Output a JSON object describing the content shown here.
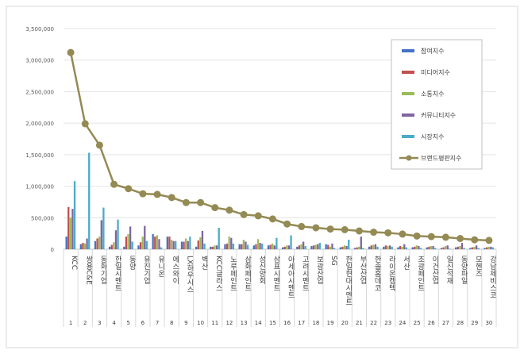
{
  "chart_data": {
    "type": "bar",
    "title": "",
    "xlabel": "",
    "ylabel": "",
    "ylim": [
      0,
      3500000
    ],
    "yticks": [
      "0",
      "500,000",
      "1,000,000",
      "1,500,000",
      "2,000,000",
      "2,500,000",
      "3,000,000",
      "3,500,000"
    ],
    "categories": [
      "KCC",
      "쌍용C&E",
      "동화기업",
      "한일시멘트",
      "동양",
      "유진기업",
      "유니온",
      "에스와이",
      "LX하우시스",
      "벽산",
      "KCC글라스",
      "노루페인트",
      "삼화페인트",
      "성신양회",
      "삼표시멘트",
      "아세아시멘트",
      "고려시멘트",
      "보광산업",
      "SG",
      "한일현대시멘트",
      "부산산업",
      "한솔홈데코",
      "라이온켐텍",
      "서산",
      "조광페인트",
      "이건산업",
      "일신석재",
      "동양파일",
      "모헨즈",
      "강남제비스코"
    ],
    "ranks": [
      "1",
      "2",
      "3",
      "4",
      "5",
      "6",
      "7",
      "8",
      "9",
      "10",
      "11",
      "12",
      "13",
      "14",
      "15",
      "16",
      "17",
      "18",
      "19",
      "20",
      "21",
      "22",
      "23",
      "24",
      "25",
      "26",
      "27",
      "28",
      "29",
      "30"
    ],
    "series": [
      {
        "name": "참여지수",
        "color": "#4472c4",
        "values": [
          200000,
          80000,
          130000,
          40000,
          40000,
          60000,
          240000,
          200000,
          120000,
          40000,
          40000,
          80000,
          80000,
          60000,
          60000,
          30000,
          40000,
          50000,
          80000,
          30000,
          20000,
          40000,
          40000,
          30000,
          30000,
          30000,
          20000,
          30000,
          20000,
          20000
        ]
      },
      {
        "name": "미디어지수",
        "color": "#c0504d",
        "values": [
          670000,
          100000,
          170000,
          70000,
          200000,
          110000,
          200000,
          200000,
          120000,
          140000,
          40000,
          90000,
          80000,
          80000,
          70000,
          40000,
          60000,
          60000,
          70000,
          40000,
          30000,
          60000,
          60000,
          50000,
          40000,
          40000,
          30000,
          40000,
          30000,
          30000
        ]
      },
      {
        "name": "소통지수",
        "color": "#9bbb59",
        "values": [
          500000,
          90000,
          200000,
          110000,
          240000,
          200000,
          220000,
          150000,
          170000,
          190000,
          60000,
          200000,
          150000,
          160000,
          90000,
          60000,
          80000,
          70000,
          40000,
          60000,
          40000,
          70000,
          50000,
          40000,
          60000,
          50000,
          50000,
          50000,
          40000,
          40000
        ]
      },
      {
        "name": "커뮤니티지수",
        "color": "#8064a2",
        "values": [
          640000,
          170000,
          460000,
          300000,
          360000,
          370000,
          160000,
          130000,
          130000,
          290000,
          60000,
          180000,
          120000,
          100000,
          60000,
          60000,
          120000,
          80000,
          90000,
          50000,
          200000,
          80000,
          60000,
          80000,
          50000,
          50000,
          60000,
          100000,
          60000,
          40000
        ]
      },
      {
        "name": "시장지수",
        "color": "#4bacc6",
        "values": [
          1080000,
          1530000,
          660000,
          470000,
          120000,
          130000,
          30000,
          130000,
          200000,
          90000,
          340000,
          90000,
          70000,
          90000,
          180000,
          220000,
          50000,
          100000,
          20000,
          150000,
          20000,
          40000,
          40000,
          30000,
          20000,
          20000,
          10000,
          20000,
          20000,
          30000
        ]
      }
    ],
    "line": {
      "name": "브랜드평판지수",
      "color": "#948a54",
      "values": [
        3120000,
        1990000,
        1650000,
        1030000,
        960000,
        880000,
        870000,
        820000,
        740000,
        740000,
        660000,
        620000,
        550000,
        530000,
        480000,
        400000,
        360000,
        340000,
        320000,
        310000,
        290000,
        270000,
        260000,
        240000,
        210000,
        200000,
        190000,
        170000,
        150000,
        140000
      ]
    },
    "legend_position": "top-right"
  }
}
